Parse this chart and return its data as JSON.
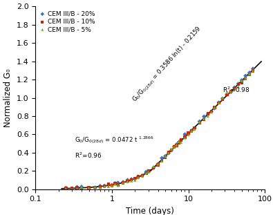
{
  "xlabel": "Time (days)",
  "ylabel": "Normalized G₀",
  "xlim": [
    0.1,
    100
  ],
  "ylim": [
    0,
    2
  ],
  "yticks": [
    0,
    0.2,
    0.4,
    0.6,
    0.8,
    1.0,
    1.2,
    1.4,
    1.6,
    1.8,
    2.0
  ],
  "legend_labels": [
    "CEM III/B - 20%",
    "CEM III/B - 10%",
    "CEM III/B - 5%"
  ],
  "legend_colors": [
    "#3B6FBF",
    "#CC2200",
    "#7AAA22"
  ],
  "legend_markers": [
    "D",
    "s",
    "^"
  ],
  "phase1_a": 0.0472,
  "phase1_b": 1.2866,
  "phase2_a": 0.3586,
  "phase2_b": -0.2159,
  "phase1_xrange": [
    0.22,
    3.2
  ],
  "phase2_xrange": [
    3.0,
    90
  ],
  "phase1_label": "G$_0$/G$_{0(28d)}$ = 0.0472 t $^{1.2866}$",
  "phase1_r2": "R$^2$=0.96",
  "phase2_label": "G$_0$/G$_{0(28d)}$ = 0.3586 ln(t) - 0.2159",
  "phase2_r2": "R$^2$=0.98"
}
